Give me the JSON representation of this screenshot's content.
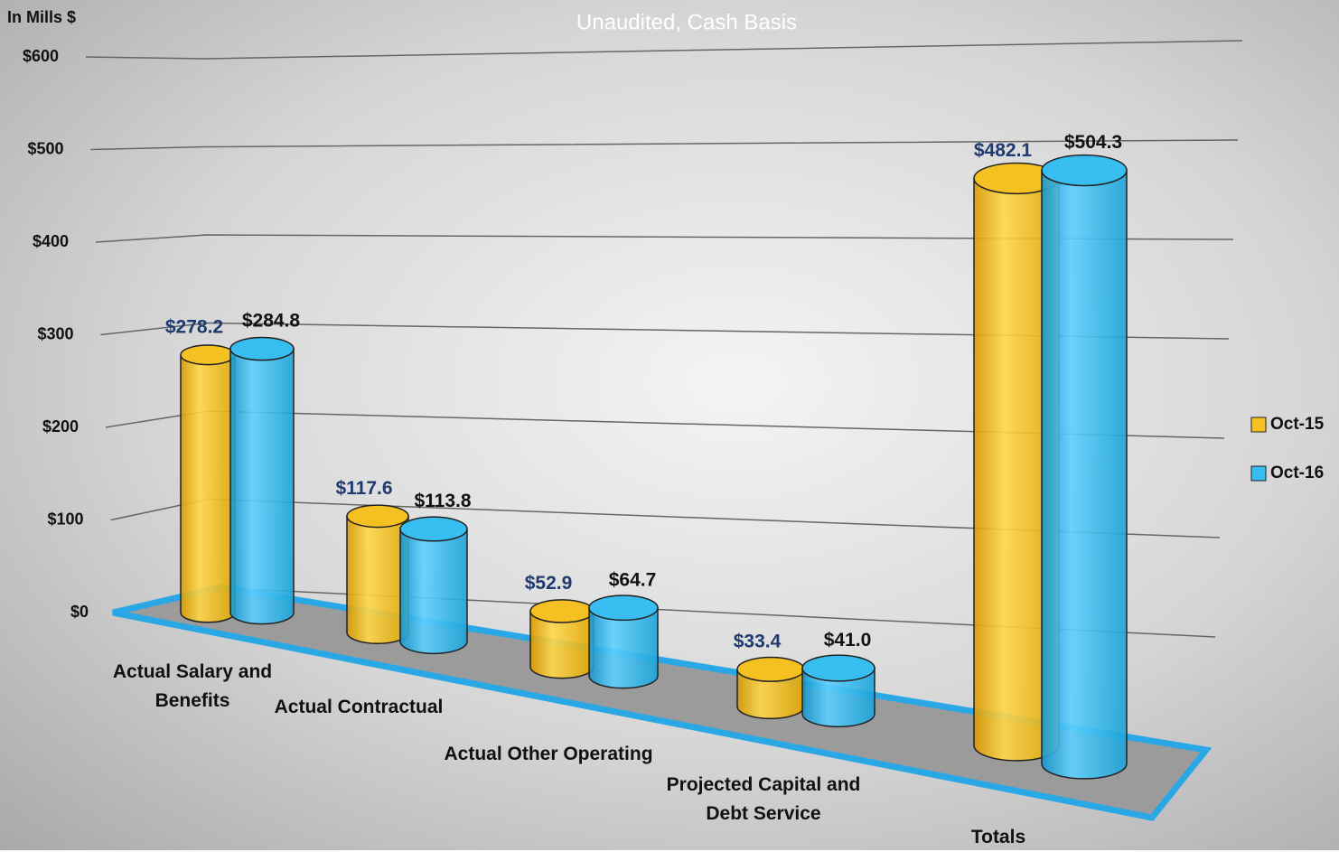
{
  "chart_data": {
    "type": "bar3d",
    "subtitle": "Unaudited, Cash Basis",
    "y_label": "In Mills $",
    "categories": [
      "Actual Salary and Benefits",
      "Actual Contractual",
      "Actual Other Operating",
      "Projected Capital and Debt Service",
      "Totals"
    ],
    "series": [
      {
        "name": "Oct-15",
        "color": "#f5c022",
        "values": [
          278.2,
          117.6,
          52.9,
          33.4,
          482.1
        ],
        "value_labels": [
          "$278.2",
          "$117.6",
          "$52.9",
          "$33.4",
          "$482.1"
        ]
      },
      {
        "name": "Oct-16",
        "color": "#38bdf0",
        "values": [
          284.8,
          113.8,
          64.7,
          41.0,
          504.3
        ],
        "value_labels": [
          "$284.8",
          "$113.8",
          "$64.7",
          "$41.0",
          "$504.3"
        ]
      }
    ],
    "ylim": [
      0,
      600
    ],
    "yticks": [
      {
        "value": 0,
        "label": "$0"
      },
      {
        "value": 100,
        "label": "$100"
      },
      {
        "value": 200,
        "label": "$200"
      },
      {
        "value": 300,
        "label": "$300"
      },
      {
        "value": 400,
        "label": "$400"
      },
      {
        "value": 500,
        "label": "$500"
      },
      {
        "value": 600,
        "label": "$600"
      }
    ],
    "grid": true,
    "legend": "right"
  }
}
